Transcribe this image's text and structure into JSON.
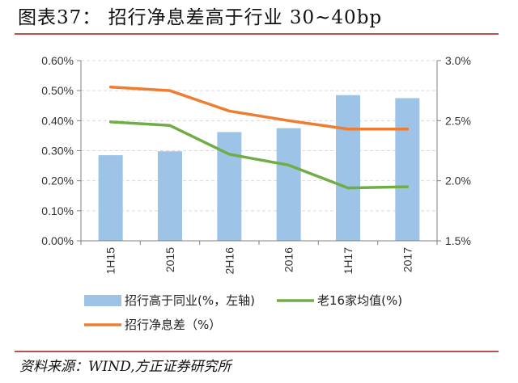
{
  "figure": {
    "title": "图表37：  招行净息差高于行业 30~40bp",
    "source": "资料来源：WIND,方正证券研究所"
  },
  "colors": {
    "accent_rule": "#c0504d",
    "bar": "#9dc3e6",
    "line_peer": "#70ad47",
    "line_cmb": "#ed7d31",
    "axis": "#7f7f7f",
    "grid": "#d9d9d9"
  },
  "chart_data": {
    "type": "bar",
    "categories": [
      "1H15",
      "2015",
      "2H16",
      "2016",
      "1H17",
      "2017"
    ],
    "y_left": {
      "lim": [
        0.0,
        0.006
      ],
      "ticks": [
        0.0,
        0.001,
        0.002,
        0.003,
        0.004,
        0.005,
        0.006
      ],
      "tick_labels": [
        "0.00%",
        "0.10%",
        "0.20%",
        "0.30%",
        "0.40%",
        "0.50%",
        "0.60%"
      ]
    },
    "y_right": {
      "lim": [
        0.015,
        0.03
      ],
      "ticks": [
        0.015,
        0.02,
        0.025,
        0.03
      ],
      "tick_labels": [
        "1.5%",
        "2.0%",
        "2.5%",
        "3.0%"
      ]
    },
    "grid": true,
    "legend_position": "bottom",
    "series": [
      {
        "name": "招行高于同业(%，左轴)",
        "type": "bar",
        "axis": "left",
        "values": [
          0.00285,
          0.00298,
          0.00362,
          0.00375,
          0.00485,
          0.00475
        ]
      },
      {
        "name": "老16家均值(%)",
        "type": "line",
        "axis": "right",
        "values": [
          0.0249,
          0.0246,
          0.0222,
          0.0213,
          0.0194,
          0.0195
        ]
      },
      {
        "name": "招行净息差（%）",
        "type": "line",
        "axis": "right",
        "values": [
          0.0278,
          0.0275,
          0.0258,
          0.025,
          0.0243,
          0.0243
        ]
      }
    ]
  }
}
